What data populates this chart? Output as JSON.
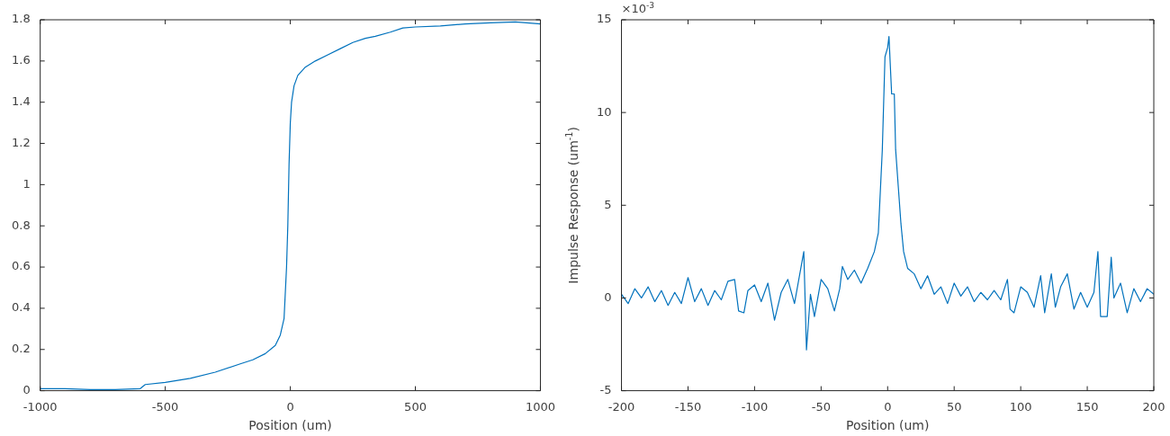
{
  "chart_data": [
    {
      "type": "line",
      "xlabel": "Position (um)",
      "xlim": [
        -1000,
        1000
      ],
      "xticks": [
        -1000,
        -500,
        0,
        500,
        1000
      ],
      "ylim": [
        0,
        1.8
      ],
      "yticks": [
        0,
        0.2,
        0.4,
        0.6,
        0.8,
        1,
        1.2,
        1.4,
        1.6,
        1.8
      ],
      "marker": "none",
      "series": [
        {
          "color": "#0072bd",
          "x": [
            -1000,
            -900,
            -800,
            -700,
            -600,
            -580,
            -500,
            -450,
            -400,
            -300,
            -200,
            -150,
            -100,
            -60,
            -40,
            -25,
            -15,
            -10,
            -5,
            0,
            5,
            15,
            30,
            60,
            100,
            150,
            200,
            250,
            300,
            340,
            400,
            450,
            500,
            600,
            700,
            800,
            900,
            1000
          ],
          "values": [
            0.01,
            0.01,
            0.005,
            0.005,
            0.01,
            0.03,
            0.04,
            0.05,
            0.06,
            0.09,
            0.13,
            0.15,
            0.18,
            0.22,
            0.27,
            0.35,
            0.6,
            0.8,
            1.1,
            1.3,
            1.4,
            1.48,
            1.53,
            1.57,
            1.6,
            1.63,
            1.66,
            1.69,
            1.71,
            1.72,
            1.74,
            1.76,
            1.765,
            1.77,
            1.78,
            1.785,
            1.79,
            1.78
          ]
        }
      ]
    },
    {
      "type": "line",
      "xlabel": "Position (um)",
      "ylabel": "Impulse Response (um$^{-1}$)",
      "annotations": [
        "×10$^{-3}$"
      ],
      "xlim": [
        -200,
        200
      ],
      "xticks": [
        -200,
        -150,
        -100,
        -50,
        0,
        50,
        100,
        150,
        200
      ],
      "ylim": [
        -5,
        15
      ],
      "yticks": [
        -5,
        0,
        5,
        10,
        15
      ],
      "marker": "none",
      "series": [
        {
          "color": "#0072bd",
          "x": [
            -200,
            -195,
            -190,
            -185,
            -180,
            -175,
            -170,
            -165,
            -160,
            -155,
            -150,
            -145,
            -140,
            -135,
            -130,
            -125,
            -120,
            -115,
            -112,
            -108,
            -105,
            -100,
            -95,
            -90,
            -85,
            -80,
            -75,
            -70,
            -67,
            -63,
            -61,
            -58,
            -55,
            -50,
            -45,
            -40,
            -36,
            -34,
            -30,
            -25,
            -20,
            -15,
            -10,
            -7,
            -4,
            -2,
            0,
            1,
            3,
            5,
            6,
            8,
            10,
            12,
            15,
            20,
            25,
            30,
            35,
            40,
            45,
            50,
            55,
            60,
            65,
            70,
            75,
            80,
            85,
            90,
            92,
            95,
            100,
            105,
            110,
            115,
            118,
            123,
            126,
            130,
            135,
            140,
            145,
            150,
            155,
            158,
            160,
            165,
            168,
            170,
            175,
            180,
            185,
            190,
            195,
            200
          ],
          "values": [
            0.2,
            -0.3,
            0.5,
            0,
            0.6,
            -0.2,
            0.4,
            -0.4,
            0.3,
            -0.3,
            1.1,
            -0.2,
            0.5,
            -0.4,
            0.4,
            -0.1,
            0.9,
            1.0,
            -0.7,
            -0.8,
            0.4,
            0.7,
            -0.2,
            0.8,
            -1.2,
            0.3,
            1.0,
            -0.3,
            0.9,
            2.5,
            -2.8,
            0.2,
            -1.0,
            1.0,
            0.5,
            -0.7,
            0.5,
            1.7,
            1.0,
            1.5,
            0.8,
            1.6,
            2.5,
            3.5,
            8,
            13,
            13.5,
            14.1,
            11,
            11,
            8,
            6,
            4,
            2.5,
            1.6,
            1.3,
            0.5,
            1.2,
            0.2,
            0.6,
            -0.3,
            0.8,
            0.1,
            0.6,
            -0.2,
            0.3,
            -0.1,
            0.4,
            -0.1,
            1.0,
            -0.6,
            -0.8,
            0.6,
            0.3,
            -0.5,
            1.2,
            -0.8,
            1.3,
            -0.5,
            0.6,
            1.3,
            -0.6,
            0.3,
            -0.5,
            0.3,
            2.5,
            -1.0,
            -1.0,
            2.2,
            0,
            0.8,
            -0.8,
            0.5,
            -0.2,
            0.5,
            0.2
          ]
        }
      ]
    }
  ]
}
